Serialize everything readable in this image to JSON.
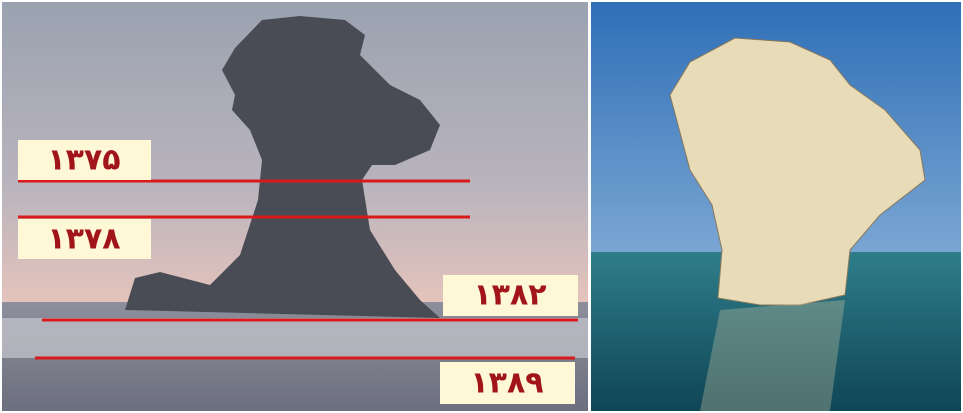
{
  "left_image": {
    "labels": [
      "۱۳۷۵",
      "۱۳۷۸",
      "۱۳۸۲",
      "۱۳۸۹"
    ]
  }
}
